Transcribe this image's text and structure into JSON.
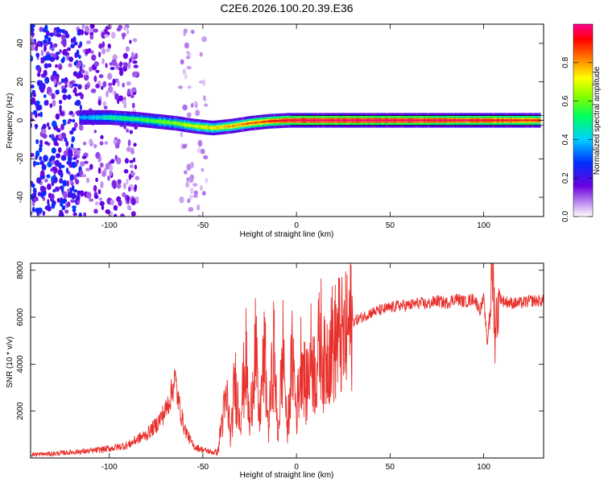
{
  "title": "C2E6.2026.100.20.39.E36",
  "chart_data": [
    {
      "type": "heatmap",
      "xlabel": "Height of straight line (km)",
      "ylabel": "Frequency (Hz)",
      "xlim": [
        -142,
        132
      ],
      "ylim": [
        -50,
        50
      ],
      "xticks": [
        -100,
        -50,
        0,
        50,
        100
      ],
      "yticks": [
        -40,
        -20,
        0,
        20,
        40
      ],
      "colorbar": {
        "label": "Normalized spectral amplitude",
        "range": [
          0.0,
          1.0
        ],
        "ticks": [
          0.0,
          0.2,
          0.4,
          0.6,
          0.8
        ],
        "tick_labels": [
          "0.0",
          "0.2",
          "0.4",
          "0.6",
          "0.8"
        ]
      },
      "ridge": {
        "description": "Dominant frequency band versus height",
        "x": [
          -116,
          -100,
          -85,
          -75,
          -65,
          -55,
          -45,
          -35,
          -25,
          -15,
          -5,
          0,
          50,
          100,
          130
        ],
        "frequency": [
          1.5,
          1.5,
          0.5,
          -0.5,
          -1.5,
          -3,
          -4,
          -3,
          -1.5,
          -0.5,
          0,
          0,
          0,
          0,
          0
        ],
        "amplitude": [
          0.35,
          0.5,
          0.55,
          0.6,
          0.65,
          0.7,
          0.75,
          0.8,
          0.85,
          0.9,
          0.95,
          1.0,
          1.0,
          0.95,
          0.9
        ]
      },
      "noise_regions": [
        {
          "x_from": -142,
          "x_to": -115,
          "amplitude": 0.2
        },
        {
          "x_from": -115,
          "x_to": -85,
          "amplitude": 0.12
        },
        {
          "x_from": -62,
          "x_to": -48,
          "amplitude": 0.06
        }
      ]
    },
    {
      "type": "line",
      "xlabel": "Height of straight line (km)",
      "ylabel": "SNR (10 * v/v)",
      "xlim": [
        -142,
        132
      ],
      "ylim": [
        0,
        8300
      ],
      "xticks": [
        -100,
        -50,
        0,
        50,
        100
      ],
      "yticks": [
        2000,
        4000,
        6000,
        8000
      ],
      "series": [
        {
          "name": "SNR",
          "color": "#e8302c",
          "x": [
            -142,
            -130,
            -120,
            -110,
            -100,
            -90,
            -85,
            -80,
            -75,
            -70,
            -67,
            -65,
            -63,
            -60,
            -57,
            -55,
            -50,
            -45,
            -42,
            -40,
            -37,
            -35,
            -33,
            -30,
            -27,
            -25,
            -22,
            -20,
            -17,
            -15,
            -12,
            -10,
            -7,
            -5,
            -2,
            0,
            3,
            5,
            8,
            10,
            13,
            15,
            18,
            20,
            23,
            25,
            28,
            30,
            35,
            40,
            45,
            50,
            55,
            60,
            65,
            70,
            75,
            80,
            85,
            90,
            95,
            98,
            100,
            102,
            104,
            105,
            106,
            108,
            110,
            115,
            120,
            125,
            132
          ],
          "y": [
            150,
            180,
            250,
            300,
            400,
            550,
            800,
            1000,
            1400,
            2000,
            2700,
            3400,
            2400,
            1300,
            800,
            500,
            350,
            250,
            250,
            1500,
            2500,
            800,
            3300,
            1800,
            4200,
            1200,
            5000,
            1500,
            4500,
            1200,
            4800,
            800,
            4800,
            1000,
            4500,
            1800,
            4800,
            2800,
            4500,
            3500,
            5200,
            3800,
            5000,
            4800,
            5300,
            4900,
            5500,
            5800,
            6000,
            6200,
            6300,
            6400,
            6500,
            6500,
            6600,
            6550,
            6700,
            6600,
            6800,
            6650,
            6800,
            6300,
            6800,
            4800,
            7500,
            8200,
            5300,
            7000,
            6700,
            6600,
            6600,
            6700,
            6700
          ]
        }
      ]
    }
  ]
}
